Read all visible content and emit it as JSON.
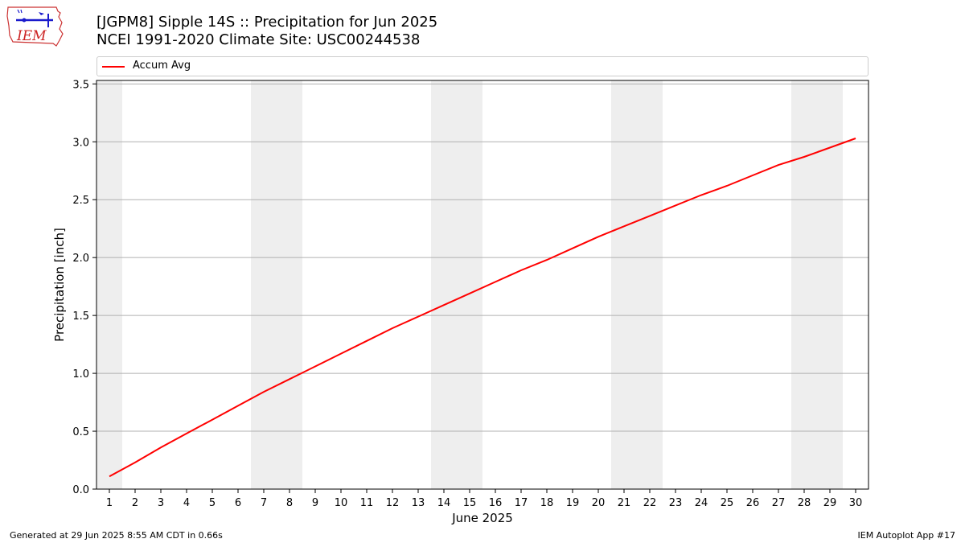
{
  "header": {
    "title_line1": "[JGPM8] Sipple 14S :: Precipitation for Jun 2025",
    "title_line2": "NCEI 1991-2020 Climate Site: USC00244538"
  },
  "logo": {
    "text": "IEM",
    "icon": "iem-iowa-logo"
  },
  "footer": {
    "left": "Generated at 29 Jun 2025 8:55 AM CDT in 0.66s",
    "right": "IEM Autoplot App #17"
  },
  "colors": {
    "series": "#ff0000",
    "weekend_band": "#eeeeee",
    "grid": "#b0b0b0"
  },
  "chart_data": {
    "type": "line",
    "xlabel": "June 2025",
    "ylabel": "Precipitation [inch]",
    "xlim": [
      0.5,
      30.5
    ],
    "ylim": [
      0,
      3.53
    ],
    "x": [
      1,
      2,
      3,
      4,
      5,
      6,
      7,
      8,
      9,
      10,
      11,
      12,
      13,
      14,
      15,
      16,
      17,
      18,
      19,
      20,
      21,
      22,
      23,
      24,
      25,
      26,
      27,
      28,
      29,
      30
    ],
    "x_ticks": [
      "1",
      "2",
      "3",
      "4",
      "5",
      "6",
      "7",
      "8",
      "9",
      "10",
      "11",
      "12",
      "13",
      "14",
      "15",
      "16",
      "17",
      "18",
      "19",
      "20",
      "21",
      "22",
      "23",
      "24",
      "25",
      "26",
      "27",
      "28",
      "29",
      "30"
    ],
    "y_ticks": [
      "0.0",
      "0.5",
      "1.0",
      "1.5",
      "2.0",
      "2.5",
      "3.0",
      "3.5"
    ],
    "y_tick_values": [
      0,
      0.5,
      1.0,
      1.5,
      2.0,
      2.5,
      3.0,
      3.5
    ],
    "grid": "y",
    "legend_position": "top",
    "shaded_days": [
      [
        0.5,
        1.5
      ],
      [
        6.5,
        8.5
      ],
      [
        13.5,
        15.5
      ],
      [
        20.5,
        22.5
      ],
      [
        27.5,
        29.5
      ]
    ],
    "series": [
      {
        "name": "Accum Avg",
        "values": [
          0.11,
          0.23,
          0.36,
          0.48,
          0.6,
          0.72,
          0.84,
          0.95,
          1.06,
          1.17,
          1.28,
          1.39,
          1.49,
          1.59,
          1.69,
          1.79,
          1.89,
          1.98,
          2.08,
          2.18,
          2.27,
          2.36,
          2.45,
          2.54,
          2.62,
          2.71,
          2.8,
          2.87,
          2.95,
          3.03
        ]
      }
    ]
  }
}
